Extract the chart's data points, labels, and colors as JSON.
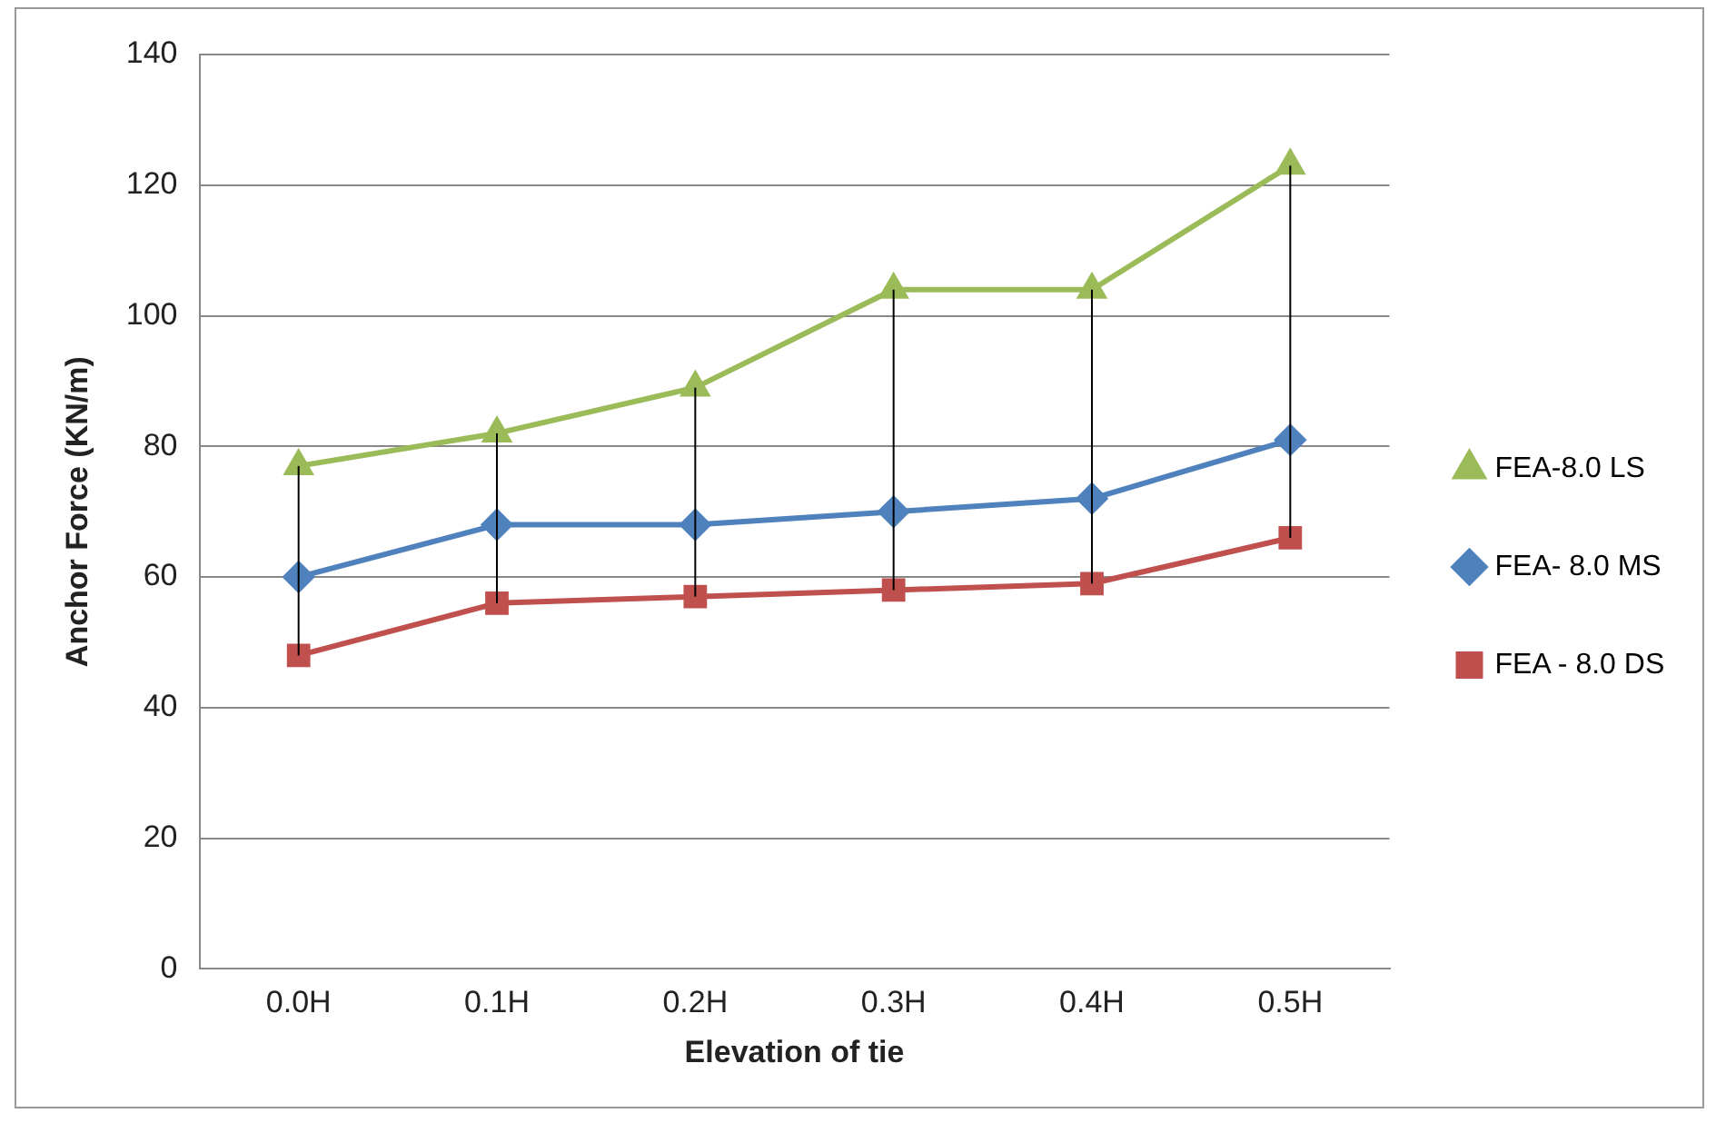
{
  "chart_data": {
    "type": "line",
    "xlabel": "Elevation of tie",
    "ylabel": "Anchor Force (KN/m)",
    "categories": [
      "0.0H",
      "0.1H",
      "0.2H",
      "0.3H",
      "0.4H",
      "0.5H"
    ],
    "series": [
      {
        "name": "FEA-8.0 LS",
        "color": "#9bbb59",
        "marker": "triangle",
        "values": [
          77,
          82,
          89,
          104,
          104,
          123
        ],
        "errors": [
          [
            48,
            77
          ],
          [
            56,
            82
          ],
          [
            57,
            89
          ],
          [
            58,
            104
          ],
          [
            59,
            104
          ],
          [
            66,
            123
          ]
        ]
      },
      {
        "name": "FEA- 8.0 MS",
        "color": "#4f81bd",
        "marker": "diamond",
        "values": [
          60,
          68,
          68,
          70,
          72,
          81
        ]
      },
      {
        "name": "FEA - 8.0 DS",
        "color": "#c0504d",
        "marker": "square",
        "values": [
          48,
          56,
          57,
          58,
          59,
          66
        ]
      }
    ],
    "ylim": [
      0,
      140
    ],
    "yticks": [
      0,
      20,
      40,
      60,
      80,
      100,
      120,
      140
    ],
    "grid": "y",
    "legend": "right",
    "line_style": "solid"
  }
}
